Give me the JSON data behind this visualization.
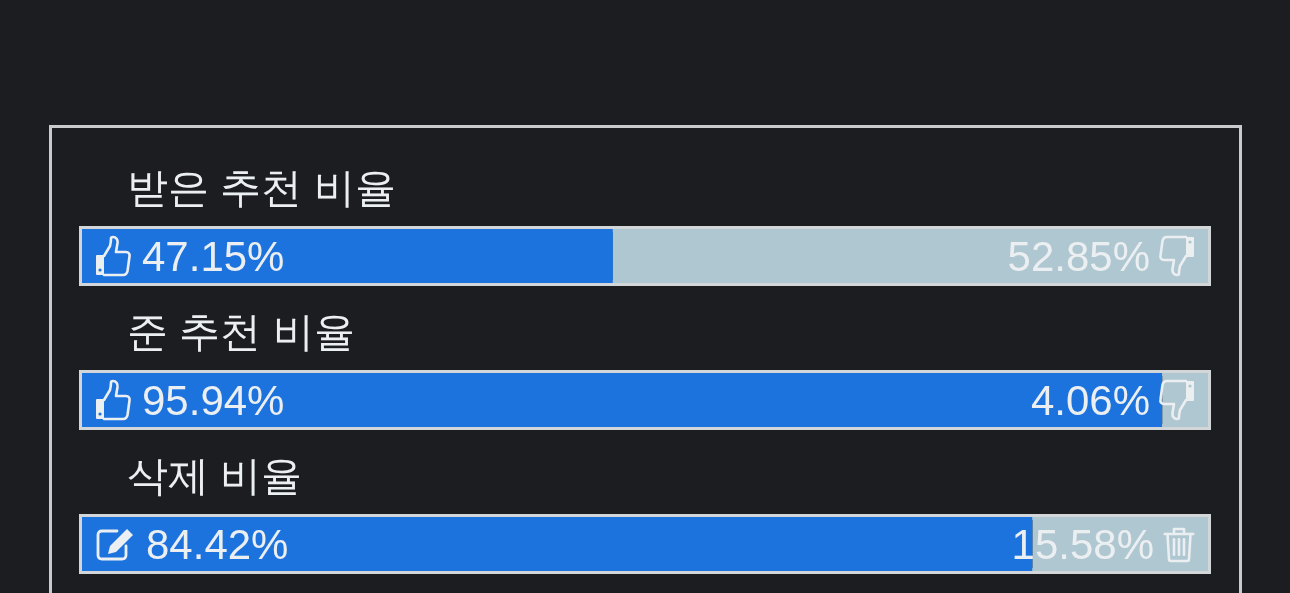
{
  "chart_data": {
    "type": "bar",
    "orientation": "horizontal",
    "stacked": true,
    "categories": [
      "받은 추천 비율",
      "준 추천 비율",
      "삭제 비율"
    ],
    "series": [
      {
        "color": "#1d73de",
        "values": [
          47.15,
          95.94,
          84.42
        ],
        "value_labels": [
          "47.15%",
          "95.94%",
          "84.42%"
        ]
      },
      {
        "color": "#afc7d1",
        "values": [
          52.85,
          4.06,
          15.58
        ],
        "value_labels": [
          "52.85%",
          "4.06%",
          "15.58%"
        ]
      }
    ],
    "xlim": [
      0,
      100
    ],
    "tick_labels": "y"
  }
}
